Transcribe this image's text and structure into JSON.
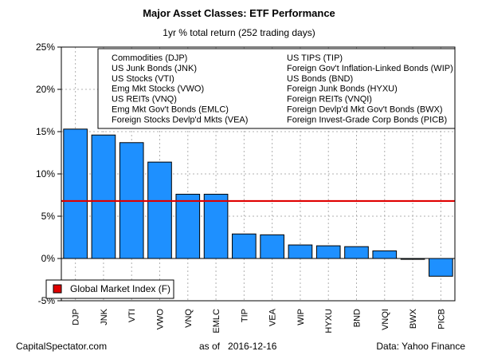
{
  "title": "Major Asset Classes: ETF Performance",
  "subtitle": "1yr % total return (252 trading days)",
  "footer": {
    "left": "CapitalSpectator.com",
    "as_of_label": "as of",
    "date": "2016-12-16",
    "source": "Data: Yahoo Finance"
  },
  "colors": {
    "bar": "#1e90ff",
    "reference_line": "#e00000",
    "grid": "#b0b0b0"
  },
  "chart_data": {
    "type": "bar",
    "title": "Major Asset Classes: ETF Performance",
    "subtitle": "1yr % total return (252 trading days)",
    "categories": [
      "DJP",
      "JNK",
      "VTI",
      "VWO",
      "VNQ",
      "EMLC",
      "TIP",
      "VEA",
      "WIP",
      "HYXU",
      "BND",
      "VNQI",
      "BWX",
      "PICB"
    ],
    "values": [
      15.3,
      14.6,
      13.7,
      11.4,
      7.6,
      7.6,
      2.9,
      2.8,
      1.6,
      1.5,
      1.4,
      0.9,
      -0.1,
      -2.1
    ],
    "ylim": [
      -5,
      25
    ],
    "yticks": [
      -5,
      0,
      5,
      10,
      15,
      20,
      25
    ],
    "ytick_labels": [
      "-5%",
      "0%",
      "5%",
      "10%",
      "15%",
      "20%",
      "25%"
    ],
    "grid": true,
    "reference_line": {
      "label": "Global Market Index (F)",
      "value": 6.8
    },
    "legend_position": "top-right",
    "legend_columns": [
      [
        "Commodities (DJP)",
        "US Junk Bonds (JNK)",
        "US Stocks (VTI)",
        "Emg Mkt Stocks (VWO)",
        "US REITs (VNQ)",
        "Emg Mkt Gov't Bonds (EMLC)",
        "Foreign Stocks Devlp'd Mkts (VEA)"
      ],
      [
        "US TIPS (TIP)",
        "Foreign Gov't Inflation-Linked Bonds (WIP)",
        "US Bonds (BND)",
        "Foreign Junk Bonds (HYXU)",
        "Foreign REITs (VNQI)",
        "Foreign Devlp'd Mkt Gov't Bonds (BWX)",
        "Foreign Invest-Grade Corp Bonds (PICB)"
      ]
    ]
  }
}
